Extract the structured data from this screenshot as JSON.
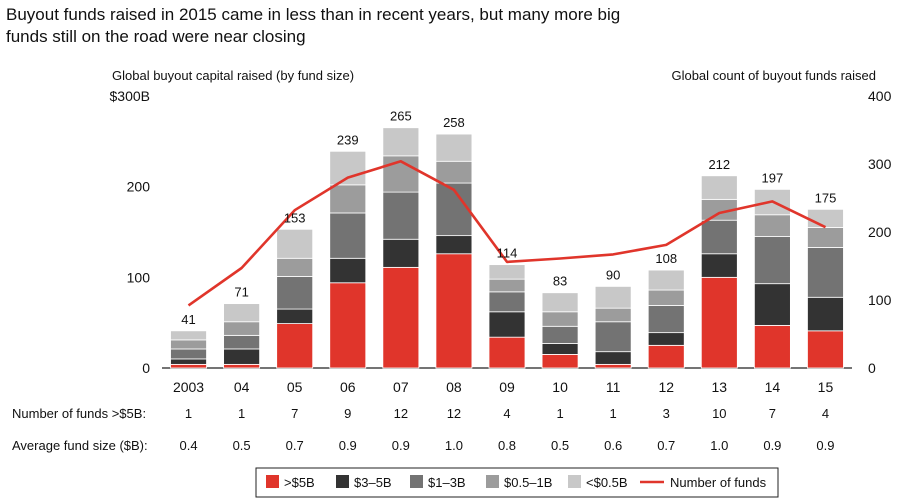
{
  "title": "Buyout funds raised in 2015 came in less than in recent years,  but many more big funds still on the road were near closing",
  "chart_data": {
    "type": "bar",
    "stacked": true,
    "categories": [
      "2003",
      "04",
      "05",
      "06",
      "07",
      "08",
      "09",
      "10",
      "11",
      "12",
      "13",
      "14",
      "15"
    ],
    "left_axis": {
      "label": "Global buyout capital raised (by fund size)",
      "ylim": [
        0,
        300
      ],
      "ticks": [
        "0",
        "100",
        "200",
        "$300B"
      ],
      "tick_values": [
        0,
        100,
        200,
        300
      ]
    },
    "right_axis": {
      "label": "Global count of buyout funds raised",
      "ylim": [
        0,
        400
      ],
      "ticks": [
        "0",
        "100",
        "200",
        "300",
        "400"
      ],
      "tick_values": [
        0,
        100,
        200,
        300,
        400
      ]
    },
    "series": [
      {
        "name": ">$5B",
        "color": "#e0352b",
        "axis": "left",
        "values": [
          4,
          4,
          49,
          94,
          111,
          126,
          34,
          15,
          4,
          25,
          100,
          47,
          41
        ]
      },
      {
        "name": "$3–5B",
        "color": "#333333",
        "axis": "left",
        "values": [
          6,
          17,
          16,
          27,
          31,
          20,
          28,
          12,
          14,
          14,
          26,
          46,
          37
        ]
      },
      {
        "name": "$1–3B",
        "color": "#737373",
        "axis": "left",
        "values": [
          11,
          15,
          36,
          50,
          52,
          58,
          22,
          19,
          33,
          30,
          37,
          52,
          55
        ]
      },
      {
        "name": "$0.5–1B",
        "color": "#9c9c9c",
        "axis": "left",
        "values": [
          10,
          15,
          20,
          31,
          40,
          24,
          14,
          16,
          15,
          17,
          23,
          24,
          22
        ]
      },
      {
        "name": "<$0.5B",
        "color": "#c8c8c8",
        "axis": "left",
        "values": [
          10,
          20,
          32,
          37,
          31,
          30,
          16,
          21,
          24,
          22,
          26,
          28,
          20
        ]
      }
    ],
    "totals": [
      41,
      71,
      153,
      239,
      265,
      258,
      114,
      83,
      90,
      108,
      212,
      197,
      175
    ],
    "line_series": {
      "name": "Number of funds",
      "color": "#e0352b",
      "axis": "right",
      "values": [
        92,
        147,
        232,
        280,
        304,
        262,
        156,
        161,
        167,
        181,
        228,
        245,
        207
      ]
    },
    "table_rows": [
      {
        "label": "Number of funds >$5B:",
        "values": [
          "1",
          "1",
          "7",
          "9",
          "12",
          "12",
          "4",
          "1",
          "1",
          "3",
          "10",
          "7",
          "4"
        ]
      },
      {
        "label": "Average fund size ($B):",
        "values": [
          "0.4",
          "0.5",
          "0.7",
          "0.9",
          "0.9",
          "1.0",
          "0.8",
          "0.5",
          "0.6",
          "0.7",
          "1.0",
          "0.9",
          "0.9"
        ]
      }
    ],
    "legend_position": "bottom-center",
    "grid": false
  }
}
